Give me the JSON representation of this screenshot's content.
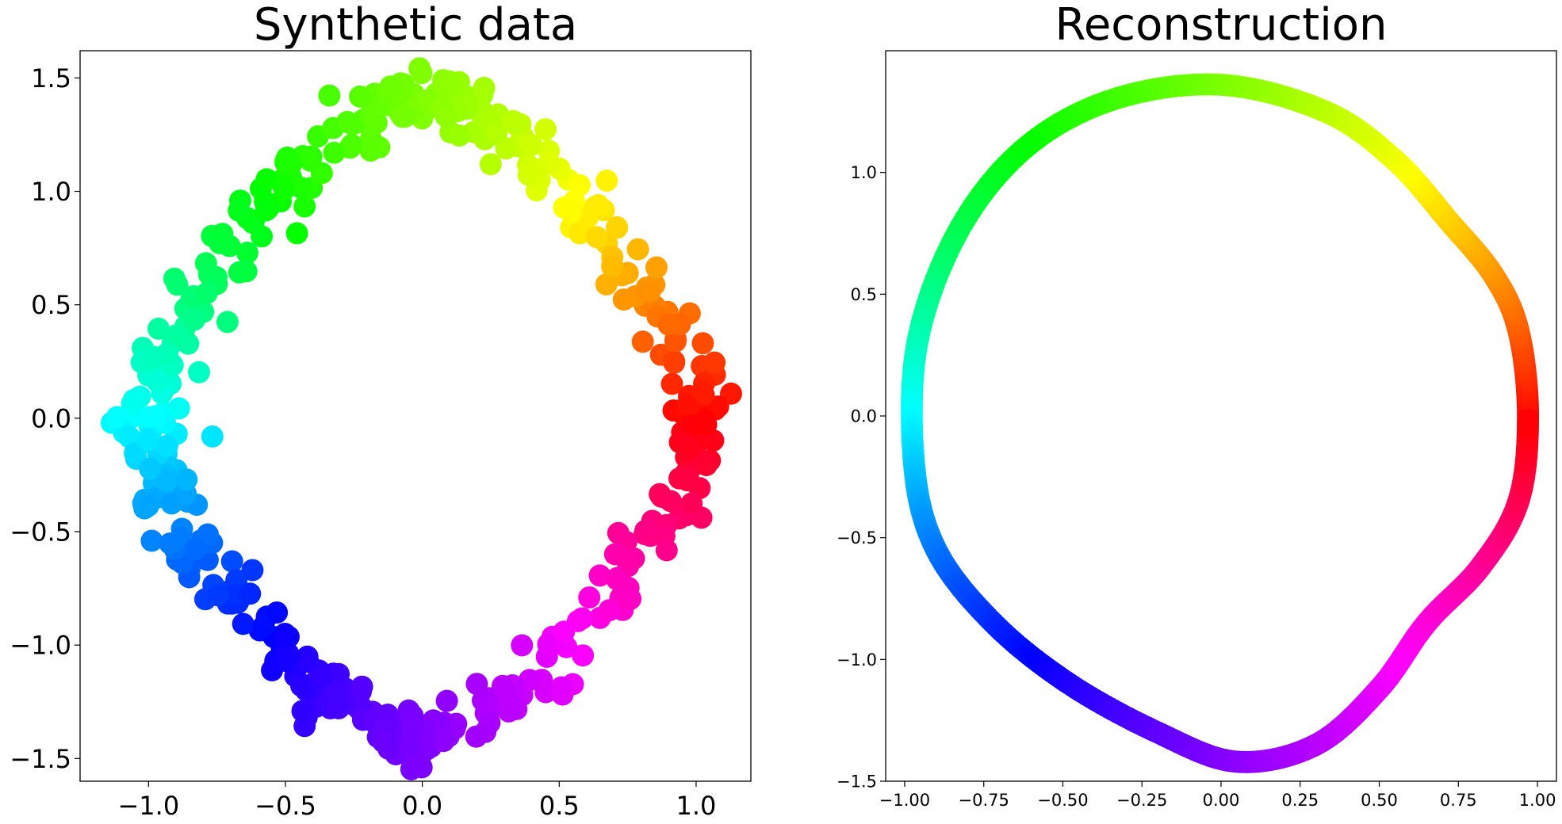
{
  "chart_data": [
    {
      "type": "scatter",
      "title": "Synthetic data",
      "xlim": [
        -1.25,
        1.2
      ],
      "ylim": [
        -1.6,
        1.62
      ],
      "xticks": [
        -1.0,
        -0.5,
        0.0,
        0.5,
        1.0
      ],
      "xtick_labels": [
        "−1.0",
        "−0.5",
        "0.0",
        "0.5",
        "1.0"
      ],
      "yticks": [
        1.5,
        1.0,
        0.5,
        0.0,
        -0.5,
        -1.0,
        -1.5
      ],
      "ytick_labels": [
        "1.5",
        "1.0",
        "0.5",
        "0.0",
        "−0.5",
        "−1.0",
        "−1.5"
      ],
      "grid": false,
      "shape": "noisy rounded diamond ring, about 500 points colored by angle (hue wheel)",
      "rx": 1.0,
      "ry": 1.42,
      "noise": 0.06,
      "n_points": 500,
      "colormap": "hsv"
    },
    {
      "type": "line",
      "title": "Reconstruction",
      "xlim": [
        -1.06,
        1.06
      ],
      "ylim": [
        -1.5,
        1.5
      ],
      "xticks": [
        -1.0,
        -0.75,
        -0.5,
        -0.25,
        0.0,
        0.25,
        0.5,
        0.75,
        1.0
      ],
      "xtick_labels": [
        "−1.00",
        "−0.75",
        "−0.50",
        "−0.25",
        "0.00",
        "0.25",
        "0.50",
        "0.75",
        "1.00"
      ],
      "yticks": [
        1.0,
        0.5,
        0.0,
        -0.5,
        -1.0,
        -1.5
      ],
      "ytick_labels": [
        "1.0",
        "0.5",
        "0.0",
        "−0.5",
        "−1.0",
        "−1.5"
      ],
      "grid": false,
      "shape": "smooth closed loop colored by angle (hue wheel)",
      "x": [
        0.97,
        0.94,
        0.86,
        0.72,
        0.55,
        0.33,
        0.0,
        -0.34,
        -0.62,
        -0.83,
        -0.96,
        -0.97,
        -0.9,
        -0.72,
        -0.48,
        -0.2,
        0.05,
        0.3,
        0.5,
        0.65,
        0.82,
        0.94
      ],
      "y": [
        0.0,
        0.35,
        0.58,
        0.8,
        1.05,
        1.25,
        1.36,
        1.3,
        1.1,
        0.76,
        0.3,
        -0.2,
        -0.55,
        -0.85,
        -1.1,
        -1.3,
        -1.42,
        -1.35,
        -1.12,
        -0.85,
        -0.62,
        -0.35
      ],
      "colormap": "hsv"
    }
  ]
}
